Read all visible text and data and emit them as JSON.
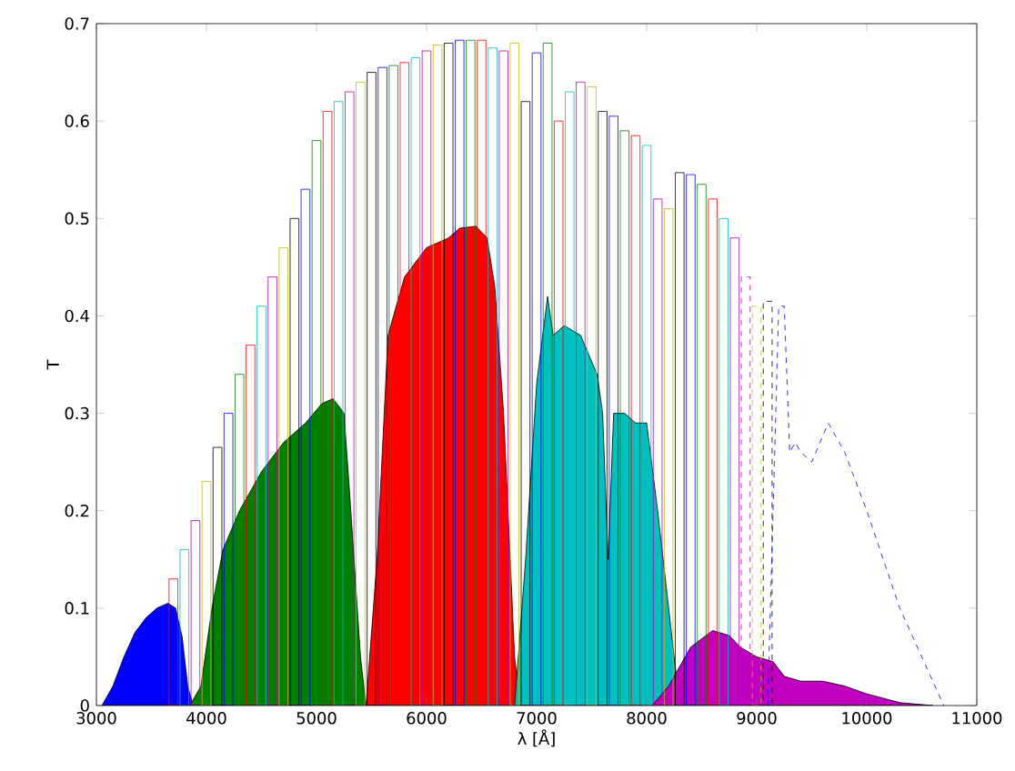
{
  "chart_data": {
    "type": "area",
    "xlabel": "λ [Å]",
    "ylabel": "T",
    "xlim": [
      3000,
      11000
    ],
    "xticks": [
      3000,
      4000,
      5000,
      6000,
      7000,
      8000,
      9000,
      10000,
      11000
    ],
    "ylim": [
      0,
      0.7
    ],
    "yticks": [
      0,
      0.1,
      0.2,
      0.3,
      0.4,
      0.5,
      0.6,
      0.7
    ],
    "series": [
      {
        "color": "#0000ff",
        "x": [
          3050,
          3150,
          3250,
          3350,
          3450,
          3550,
          3650,
          3720,
          3780,
          3830,
          3880
        ],
        "values": [
          0,
          0.02,
          0.05,
          0.075,
          0.09,
          0.1,
          0.105,
          0.1,
          0.07,
          0.02,
          0
        ]
      },
      {
        "color": "#008000",
        "x": [
          3850,
          3950,
          4050,
          4150,
          4300,
          4500,
          4700,
          4900,
          5050,
          5150,
          5250,
          5300,
          5400,
          5450
        ],
        "values": [
          0,
          0.02,
          0.1,
          0.16,
          0.2,
          0.24,
          0.27,
          0.29,
          0.31,
          0.315,
          0.3,
          0.22,
          0.05,
          0
        ]
      },
      {
        "color": "#ff0000",
        "x": [
          5450,
          5550,
          5650,
          5800,
          6000,
          6200,
          6300,
          6450,
          6550,
          6620,
          6700,
          6800,
          6850
        ],
        "values": [
          0,
          0.15,
          0.38,
          0.44,
          0.47,
          0.48,
          0.49,
          0.492,
          0.48,
          0.43,
          0.3,
          0.05,
          0
        ]
      },
      {
        "color": "#00bfbf",
        "x": [
          6800,
          6900,
          7000,
          7100,
          7150,
          7250,
          7400,
          7550,
          7600,
          7650,
          7700,
          7800,
          7900,
          8000,
          8100,
          8250,
          8300
        ],
        "values": [
          0,
          0.15,
          0.33,
          0.42,
          0.38,
          0.39,
          0.38,
          0.34,
          0.3,
          0.15,
          0.3,
          0.3,
          0.29,
          0.29,
          0.2,
          0.05,
          0
        ]
      },
      {
        "color": "#bf00bf",
        "x": [
          8050,
          8200,
          8400,
          8600,
          8750,
          8850,
          9000,
          9150,
          9250,
          9400,
          9600,
          9800,
          10000,
          10300,
          10600
        ],
        "values": [
          0,
          0.02,
          0.06,
          0.077,
          0.072,
          0.06,
          0.05,
          0.045,
          0.03,
          0.025,
          0.025,
          0.02,
          0.012,
          0.003,
          0
        ]
      },
      {
        "type": "bar",
        "line_style": "solid",
        "x": [
          3700,
          3800,
          3900,
          4000,
          4100,
          4200,
          4300,
          4400,
          4500,
          4600,
          4700,
          4800,
          4900,
          5000,
          5100,
          5200,
          5300,
          5400,
          5500,
          5600,
          5700,
          5800,
          5900,
          6000,
          6100,
          6200,
          6300,
          6400,
          6500,
          6600,
          6700,
          6800,
          6900,
          7000,
          7100,
          7200,
          7300,
          7400,
          7500,
          7600,
          7700,
          7800,
          7900,
          8000,
          8100,
          8200,
          8300,
          8400,
          8500,
          8600,
          8700,
          8800
        ],
        "values": [
          0.13,
          0.16,
          0.19,
          0.23,
          0.265,
          0.3,
          0.34,
          0.37,
          0.41,
          0.44,
          0.47,
          0.5,
          0.53,
          0.58,
          0.61,
          0.62,
          0.63,
          0.64,
          0.65,
          0.655,
          0.657,
          0.66,
          0.665,
          0.672,
          0.678,
          0.68,
          0.683,
          0.683,
          0.683,
          0.675,
          0.672,
          0.68,
          0.62,
          0.67,
          0.68,
          0.6,
          0.63,
          0.64,
          0.635,
          0.61,
          0.605,
          0.59,
          0.585,
          0.575,
          0.52,
          0.51,
          0.547,
          0.545,
          0.535,
          0.52,
          0.5,
          0.48
        ],
        "colors": [
          "#ff0000",
          "#00bfbf",
          "#bf00bf",
          "#bfbf00",
          "#000000",
          "#0000ff",
          "#008000",
          "#ff0000",
          "#00bfbf",
          "#bf00bf",
          "#bfbf00",
          "#000000",
          "#0000ff",
          "#008000",
          "#ff0000",
          "#00bfbf",
          "#bf00bf",
          "#bfbf00",
          "#000000",
          "#0000ff",
          "#008000",
          "#ff0000",
          "#00bfbf",
          "#bf00bf",
          "#bfbf00",
          "#000000",
          "#0000ff",
          "#008000",
          "#ff0000",
          "#00bfbf",
          "#bf00bf",
          "#bfbf00",
          "#000000",
          "#0000ff",
          "#008000",
          "#ff0000",
          "#00bfbf",
          "#bf00bf",
          "#bfbf00",
          "#000000",
          "#0000ff",
          "#008000",
          "#ff0000",
          "#00bfbf",
          "#bf00bf",
          "#bfbf00",
          "#000000",
          "#0000ff",
          "#008000",
          "#ff0000",
          "#00bfbf",
          "#bf00bf"
        ]
      },
      {
        "type": "bar",
        "line_style": "dashed",
        "x": [
          8900,
          9000,
          9100
        ],
        "values": [
          0.44,
          0.41,
          0.415
        ],
        "colors": [
          "#bf00bf",
          "#bfbf00",
          "#000000"
        ]
      },
      {
        "type": "line",
        "line_style": "dashed",
        "color": "#0000ff",
        "x": [
          9100,
          9200,
          9250,
          9300,
          9350,
          9400,
          9500,
          9650,
          9800,
          10000,
          10300,
          10700
        ],
        "values": [
          0,
          0.41,
          0.41,
          0.26,
          0.27,
          0.26,
          0.25,
          0.29,
          0.26,
          0.2,
          0.1,
          0
        ]
      }
    ]
  }
}
